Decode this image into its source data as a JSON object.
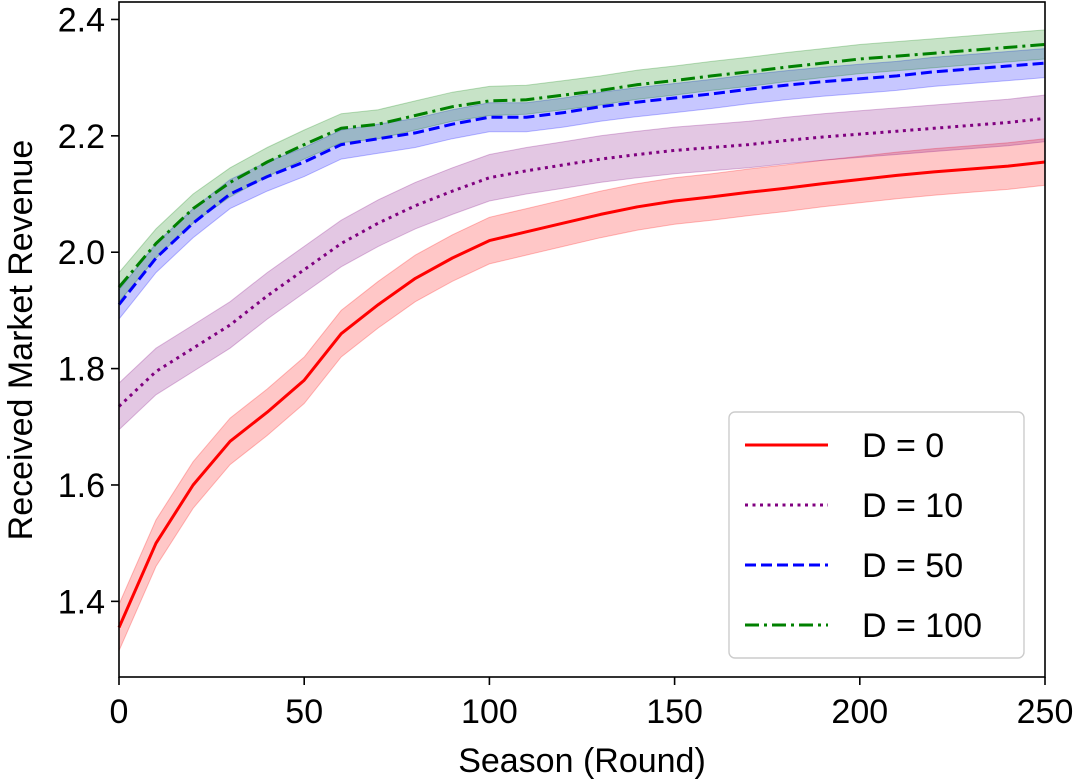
{
  "chart_data": {
    "type": "line",
    "title": "",
    "xlabel": "Season (Round)",
    "ylabel": "Received Market Revenue",
    "xlim": [
      0,
      250
    ],
    "ylim": [
      1.27,
      2.43
    ],
    "xticks": [
      0,
      50,
      100,
      150,
      200,
      250
    ],
    "yticks": [
      1.4,
      1.6,
      1.8,
      2.0,
      2.2,
      2.4
    ],
    "xtick_labels": [
      "0",
      "50",
      "100",
      "150",
      "200",
      "250"
    ],
    "ytick_labels": [
      "1.4",
      "1.6",
      "1.8",
      "2.0",
      "2.2",
      "2.4"
    ],
    "grid": false,
    "legend_position": "lower-right",
    "x": [
      0,
      10,
      20,
      30,
      40,
      50,
      60,
      70,
      80,
      90,
      100,
      110,
      120,
      130,
      140,
      150,
      160,
      170,
      180,
      190,
      200,
      210,
      220,
      230,
      240,
      250
    ],
    "series": [
      {
        "name": "D = 0",
        "label": "D = 0",
        "color": "#ff0000",
        "style": "solid",
        "values": [
          1.355,
          1.5,
          1.6,
          1.675,
          1.725,
          1.78,
          1.86,
          1.91,
          1.955,
          1.99,
          2.02,
          2.035,
          2.05,
          2.065,
          2.078,
          2.088,
          2.095,
          2.103,
          2.11,
          2.118,
          2.125,
          2.132,
          2.138,
          2.143,
          2.148,
          2.155
        ],
        "band": 0.04
      },
      {
        "name": "D = 10",
        "label": "D = 10",
        "color": "#800080",
        "style": "dotted",
        "values": [
          1.735,
          1.795,
          1.835,
          1.875,
          1.925,
          1.97,
          2.015,
          2.05,
          2.08,
          2.105,
          2.128,
          2.14,
          2.15,
          2.16,
          2.168,
          2.175,
          2.18,
          2.185,
          2.192,
          2.198,
          2.203,
          2.208,
          2.213,
          2.218,
          2.223,
          2.23
        ],
        "band": 0.04
      },
      {
        "name": "D = 50",
        "label": "D = 50",
        "color": "#0000ff",
        "style": "dashed",
        "values": [
          1.91,
          1.99,
          2.05,
          2.1,
          2.13,
          2.155,
          2.185,
          2.195,
          2.205,
          2.22,
          2.232,
          2.232,
          2.24,
          2.25,
          2.258,
          2.265,
          2.272,
          2.28,
          2.287,
          2.293,
          2.298,
          2.303,
          2.31,
          2.315,
          2.32,
          2.325
        ],
        "band": 0.025
      },
      {
        "name": "D = 100",
        "label": "D = 100",
        "color": "#008000",
        "style": "dashdot",
        "values": [
          1.94,
          2.015,
          2.075,
          2.12,
          2.155,
          2.185,
          2.213,
          2.22,
          2.235,
          2.25,
          2.26,
          2.262,
          2.27,
          2.278,
          2.288,
          2.295,
          2.303,
          2.31,
          2.318,
          2.325,
          2.332,
          2.337,
          2.342,
          2.347,
          2.352,
          2.357
        ],
        "band": 0.025
      }
    ]
  }
}
